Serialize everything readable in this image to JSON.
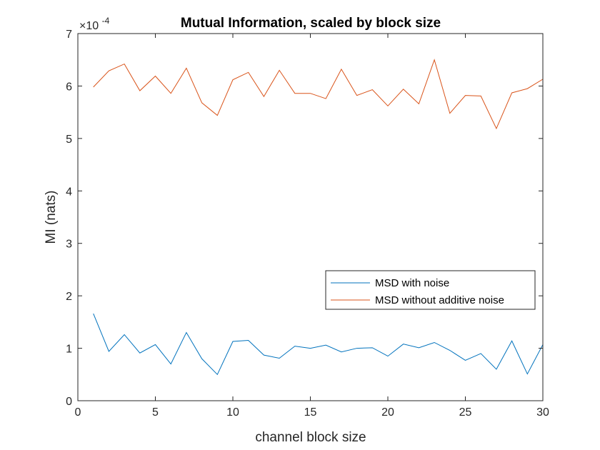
{
  "chart_data": {
    "type": "line",
    "title": "Mutual Information, scaled by block size",
    "xlabel": "channel block size",
    "ylabel": "MI (nats)",
    "y_exponent_base": "×10",
    "y_exponent_power": "-4",
    "xlim": [
      0,
      30
    ],
    "ylim": [
      0,
      7
    ],
    "xticks": [
      0,
      5,
      10,
      15,
      20,
      25,
      30
    ],
    "yticks": [
      0,
      1,
      2,
      3,
      4,
      5,
      6,
      7
    ],
    "grid": false,
    "legend_position": "lower-right",
    "x": [
      1,
      2,
      3,
      4,
      5,
      6,
      7,
      8,
      9,
      10,
      11,
      12,
      13,
      14,
      15,
      16,
      17,
      18,
      19,
      20,
      21,
      22,
      23,
      24,
      25,
      26,
      27,
      28,
      29,
      30
    ],
    "series": [
      {
        "name": "MSD with noise",
        "color": "#0072BD",
        "values": [
          1.66,
          0.94,
          1.26,
          0.91,
          1.07,
          0.7,
          1.3,
          0.8,
          0.5,
          1.13,
          1.15,
          0.87,
          0.81,
          1.04,
          1.0,
          1.06,
          0.93,
          1.0,
          1.01,
          0.85,
          1.08,
          1.01,
          1.11,
          0.96,
          0.77,
          0.9,
          0.6,
          1.14,
          0.51,
          1.07
        ]
      },
      {
        "name": "MSD without additive noise",
        "color": "#D95319",
        "values": [
          5.98,
          6.29,
          6.42,
          5.91,
          6.19,
          5.86,
          6.34,
          5.68,
          5.44,
          6.12,
          6.26,
          5.8,
          6.3,
          5.86,
          5.86,
          5.76,
          6.32,
          5.82,
          5.93,
          5.62,
          5.94,
          5.66,
          6.5,
          5.48,
          5.82,
          5.81,
          5.19,
          5.87,
          5.95,
          6.13
        ]
      }
    ]
  }
}
